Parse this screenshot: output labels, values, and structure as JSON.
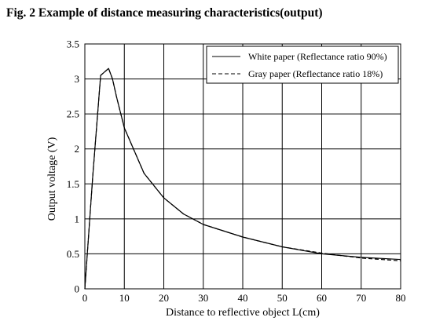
{
  "figure_title": "Fig. 2 Example of distance measuring characteristics(output)",
  "chart_data": {
    "type": "line",
    "title": "",
    "xlabel": "Distance to reflective object L(cm)",
    "ylabel": "Output voltage (V)",
    "xlim": [
      0,
      80
    ],
    "ylim": [
      0,
      3.5
    ],
    "x_ticks": [
      0,
      10,
      20,
      30,
      40,
      50,
      60,
      70,
      80
    ],
    "y_ticks": [
      0,
      0.5,
      1,
      1.5,
      2,
      2.5,
      3,
      3.5
    ],
    "x_tick_labels": [
      "0",
      "10",
      "20",
      "30",
      "40",
      "50",
      "60",
      "70",
      "80"
    ],
    "y_tick_labels": [
      "0",
      "0.5",
      "1",
      "1.5",
      "2",
      "2.5",
      "3",
      "3.5"
    ],
    "grid": true,
    "legend_position": "top-right",
    "series": [
      {
        "name": "White paper (Reflectance ratio 90%)",
        "line_style": "solid",
        "color": "#000000",
        "x": [
          0,
          2,
          4,
          5,
          6,
          7,
          8,
          10,
          15,
          20,
          25,
          30,
          40,
          50,
          60,
          70,
          80
        ],
        "y": [
          0,
          1.6,
          3.05,
          3.1,
          3.15,
          3.0,
          2.75,
          2.3,
          1.65,
          1.3,
          1.07,
          0.92,
          0.74,
          0.6,
          0.5,
          0.45,
          0.42
        ]
      },
      {
        "name": "Gray paper (Reflectance ratio 18%)",
        "line_style": "dashed",
        "color": "#000000",
        "x": [
          0,
          2,
          4,
          5,
          6,
          7,
          8,
          10,
          15,
          20,
          25,
          30,
          40,
          50,
          60,
          70,
          80
        ],
        "y": [
          0,
          1.6,
          3.05,
          3.1,
          3.15,
          3.0,
          2.75,
          2.3,
          1.65,
          1.3,
          1.07,
          0.92,
          0.74,
          0.6,
          0.51,
          0.44,
          0.4
        ]
      }
    ]
  }
}
